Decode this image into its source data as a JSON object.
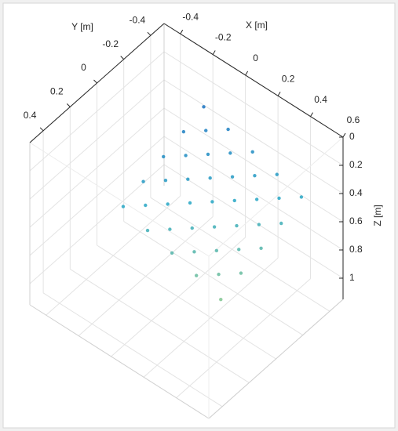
{
  "chart_data": {
    "type": "scatter3d",
    "xlabel": "X [m]",
    "ylabel": "Y [m]",
    "zlabel": "Z [m]",
    "xlim": [
      -0.5,
      0.6
    ],
    "ylim": [
      -0.5,
      0.5
    ],
    "zlim": [
      0,
      1.15
    ],
    "xticks": [
      -0.4,
      -0.2,
      0,
      0.2,
      0.4,
      0.6
    ],
    "yticks": [
      -0.4,
      -0.2,
      0,
      0.2,
      0.4
    ],
    "zticks": [
      0,
      0.2,
      0.4,
      0.6,
      0.8,
      1
    ],
    "zdir": "reverse",
    "grid": true,
    "colormap": [
      "#1565c0",
      "#26a6c4",
      "#8cc98a"
    ],
    "clim": [
      0,
      0.5
    ],
    "points": {
      "x": [
        -0.05,
        -0.05,
        -0.05,
        -0.05,
        -0.05,
        0.1,
        0.1,
        0.1,
        0.1,
        0.1,
        0.25,
        0.25,
        0.25,
        0.25,
        0.25,
        0.4,
        0.4,
        0.4,
        0.4,
        0.4,
        0.55,
        0.55,
        0.55,
        0.55,
        0.55,
        0.025,
        0.025,
        0.025,
        0.025,
        0.175,
        0.175,
        0.175,
        0.175,
        0.325,
        0.325,
        0.325,
        0.325,
        0.475,
        0.475,
        0.475,
        0.475
      ],
      "y": [
        -0.25,
        -0.1,
        0.05,
        0.2,
        0.35,
        -0.25,
        -0.1,
        0.05,
        0.2,
        0.35,
        -0.25,
        -0.1,
        0.05,
        0.2,
        0.35,
        -0.25,
        -0.1,
        0.05,
        0.2,
        0.35,
        -0.25,
        -0.1,
        0.05,
        0.2,
        0.35,
        -0.175,
        -0.025,
        0.125,
        0.275,
        -0.175,
        -0.025,
        0.125,
        0.275,
        -0.175,
        -0.025,
        0.125,
        0.275,
        -0.175,
        -0.025,
        0.125,
        0.275
      ],
      "z": [
        0.05,
        0.1,
        0.15,
        0.2,
        0.25,
        0.1,
        0.15,
        0.2,
        0.25,
        0.31,
        0.15,
        0.2,
        0.25,
        0.31,
        0.36,
        0.2,
        0.25,
        0.31,
        0.36,
        0.41,
        0.25,
        0.31,
        0.36,
        0.41,
        0.47,
        0.1,
        0.15,
        0.2,
        0.25,
        0.15,
        0.2,
        0.25,
        0.31,
        0.2,
        0.25,
        0.31,
        0.36,
        0.25,
        0.31,
        0.36,
        0.41
      ]
    }
  }
}
